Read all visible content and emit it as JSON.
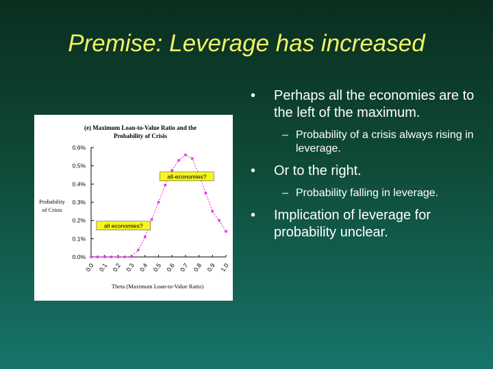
{
  "slide": {
    "title": "Premise: Leverage has increased"
  },
  "bullets": [
    {
      "text": "Perhaps all the economies are to the left of the maximum.",
      "sub": [
        "Probability of a crisis always rising in leverage."
      ]
    },
    {
      "text": "Or to the right.",
      "sub": [
        "Probability falling in leverage."
      ]
    },
    {
      "text": "Implication of leverage for probability unclear.",
      "sub": []
    }
  ],
  "markers": {
    "bullet": "•",
    "dash": "–"
  },
  "chart_data": {
    "type": "scatter",
    "title_lines": [
      "(e) Maximum Loan-to-Value Ratio and the",
      "Probability of Crisis"
    ],
    "xlabel": "Theta (Maximum Loan-to-Value Ratio)",
    "ylabel_lines": [
      "Probability",
      "of Crisis"
    ],
    "xlim": [
      0,
      1
    ],
    "ylim": [
      0,
      0.6
    ],
    "x_ticks": [
      "0.0",
      "0.1",
      "0.2",
      "0.3",
      "0.4",
      "0.5",
      "0.6",
      "0.7",
      "0.8",
      "0.9",
      "1.0"
    ],
    "y_ticks": [
      "0.0%",
      "0.1%",
      "0.2%",
      "0.3%",
      "0.4%",
      "0.5%",
      "0.6%"
    ],
    "series": [
      {
        "color": "#e040e0",
        "x": [
          0.0,
          0.05,
          0.1,
          0.15,
          0.2,
          0.25,
          0.3,
          0.35,
          0.4,
          0.45,
          0.5,
          0.55,
          0.6,
          0.65,
          0.7,
          0.75,
          0.8,
          0.85,
          0.9,
          0.95,
          1.0
        ],
        "y": [
          0.0,
          0.0,
          0.0,
          0.0,
          0.0,
          0.0,
          0.002,
          0.038,
          0.11,
          0.205,
          0.3,
          0.395,
          0.475,
          0.53,
          0.56,
          0.54,
          0.45,
          0.35,
          0.25,
          0.2,
          0.14
        ]
      }
    ],
    "annotations": [
      {
        "text": "all-economies?",
        "x": 0.71,
        "y": 0.44
      },
      {
        "text": "all economies?",
        "x": 0.24,
        "y": 0.17
      }
    ],
    "annotation_fill": "#f5f520",
    "grid": false
  }
}
